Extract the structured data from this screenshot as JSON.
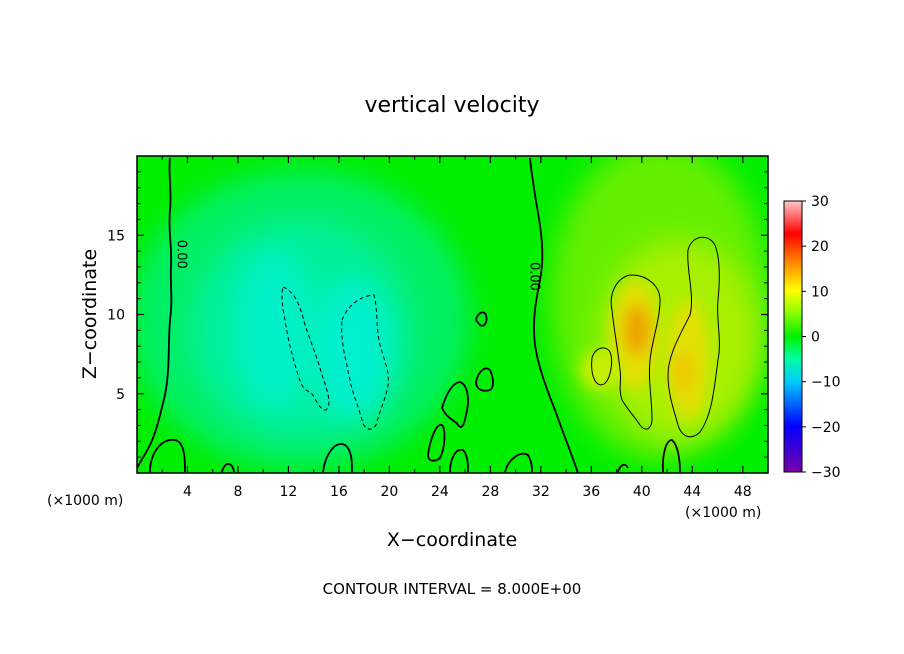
{
  "chart_data": {
    "type": "heatmap",
    "title": "vertical velocity",
    "xlabel": "X−coordinate",
    "ylabel": "Z−coordinate",
    "x_unit_left": "(×1000 m)",
    "x_unit_right": "(×1000 m)",
    "footer": "CONTOUR INTERVAL = 8.000E+00",
    "xlim": [
      0,
      50
    ],
    "ylim": [
      0,
      20
    ],
    "xticks": [
      "4",
      "8",
      "12",
      "16",
      "20",
      "24",
      "28",
      "32",
      "36",
      "40",
      "44",
      "48"
    ],
    "xtick_values": [
      4,
      8,
      12,
      16,
      20,
      24,
      28,
      32,
      36,
      40,
      44,
      48
    ],
    "yticks": [
      "5",
      "10",
      "15"
    ],
    "ytick_values": [
      5,
      10,
      15
    ],
    "colorbar": {
      "range": [
        -30,
        30
      ],
      "ticks": [
        "30",
        "20",
        "10",
        "0",
        "−10",
        "−20",
        "−30"
      ],
      "tick_values": [
        30,
        20,
        10,
        0,
        -10,
        -20,
        -30
      ]
    },
    "contour_interval": 8,
    "contour_labels": [
      {
        "text": "0.00",
        "x": 2.8,
        "y": 13.8
      },
      {
        "text": "0.00",
        "x": 30.8,
        "y": 12.4
      }
    ],
    "features": [
      {
        "name": "downdraft-left",
        "x": 14.2,
        "z": 8.0,
        "w": -8.5
      },
      {
        "name": "downdraft-center",
        "x": 18.2,
        "z": 7.5,
        "w": -9.5
      },
      {
        "name": "updraft-core",
        "x": 39.5,
        "z": 9.0,
        "w": 12
      },
      {
        "name": "updraft-right",
        "x": 43.5,
        "z": 7.0,
        "w": 9.5
      }
    ]
  },
  "colors": {
    "scale": [
      "#7a00a8",
      "#0000ff",
      "#00c8ff",
      "#00ff80",
      "#00ff00",
      "#ffff00",
      "#ff8000",
      "#ff0000",
      "#ffc0c0"
    ]
  }
}
